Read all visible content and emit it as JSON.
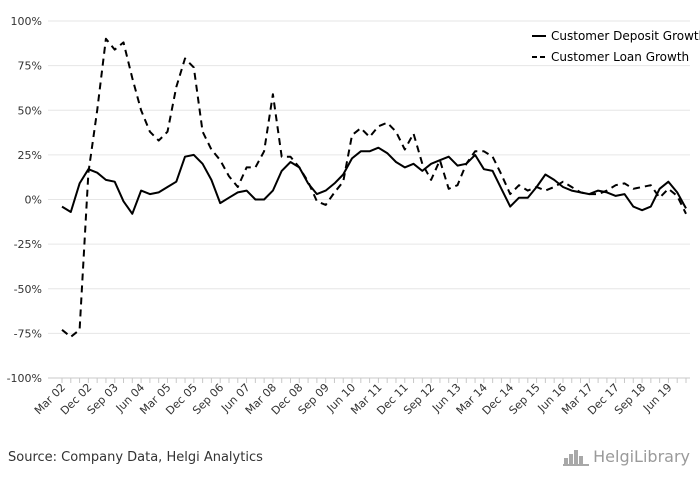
{
  "source_text": "Source: Company Data, Helgi Analytics",
  "brand": {
    "name": "HelgiLibrary",
    "logo_icon": "helgi-library-logo-icon"
  },
  "colors": {
    "grid": "#e6e6e6",
    "line": "#000000",
    "axis": "#c8c8c8"
  },
  "chart_data": {
    "type": "line",
    "title": "",
    "xlabel": "",
    "ylabel": "",
    "ylim": [
      -1.0,
      1.0
    ],
    "yticks": [
      "100%",
      "75%",
      "50%",
      "25%",
      "0%",
      "-25%",
      "-50%",
      "-75%",
      "-100%"
    ],
    "ytick_values": [
      1.0,
      0.75,
      0.5,
      0.25,
      0,
      -0.25,
      -0.5,
      -0.75,
      -1.0
    ],
    "x_tick_labels": [
      "Mar 02",
      "Dec 02",
      "Sep 03",
      "Jun 04",
      "Mar 05",
      "Dec 05",
      "Sep 06",
      "Jun 07",
      "Mar 08",
      "Dec 08",
      "Sep 09",
      "Jun 10",
      "Mar 11",
      "Dec 11",
      "Sep 12",
      "Jun 13",
      "Mar 14",
      "Dec 14",
      "Sep 15",
      "Jun 16",
      "Mar 17",
      "Dec 17",
      "Sep 18",
      "Jun 19"
    ],
    "grid": true,
    "legend_position": "top-right",
    "categories": [
      "Mar 02",
      "Jun 02",
      "Sep 02",
      "Dec 02",
      "Mar 03",
      "Jun 03",
      "Sep 03",
      "Dec 03",
      "Mar 04",
      "Jun 04",
      "Sep 04",
      "Dec 04",
      "Mar 05",
      "Jun 05",
      "Sep 05",
      "Dec 05",
      "Mar 06",
      "Jun 06",
      "Sep 06",
      "Dec 06",
      "Mar 07",
      "Jun 07",
      "Sep 07",
      "Dec 07",
      "Mar 08",
      "Jun 08",
      "Sep 08",
      "Dec 08",
      "Mar 09",
      "Jun 09",
      "Sep 09",
      "Dec 09",
      "Mar 10",
      "Jun 10",
      "Sep 10",
      "Dec 10",
      "Mar 11",
      "Jun 11",
      "Sep 11",
      "Dec 11",
      "Mar 12",
      "Jun 12",
      "Sep 12",
      "Dec 12",
      "Mar 13",
      "Jun 13",
      "Sep 13",
      "Dec 13",
      "Mar 14",
      "Jun 14",
      "Sep 14",
      "Dec 14",
      "Mar 15",
      "Jun 15",
      "Sep 15",
      "Dec 15",
      "Mar 16",
      "Jun 16",
      "Sep 16",
      "Dec 16",
      "Mar 17",
      "Jun 17",
      "Sep 17",
      "Dec 17",
      "Mar 18",
      "Jun 18",
      "Sep 18",
      "Dec 18",
      "Mar 19",
      "Jun 19",
      "Sep 19",
      "Dec 19"
    ],
    "series": [
      {
        "name": "Customer Deposit Growth",
        "dash": "solid",
        "values": [
          -0.04,
          -0.07,
          0.09,
          0.17,
          0.15,
          0.11,
          0.1,
          -0.01,
          -0.08,
          0.05,
          0.03,
          0.04,
          0.07,
          0.1,
          0.24,
          0.25,
          0.2,
          0.11,
          -0.02,
          0.01,
          0.04,
          0.05,
          0.0,
          0.0,
          0.05,
          0.16,
          0.21,
          0.18,
          0.09,
          0.03,
          0.05,
          0.09,
          0.14,
          0.23,
          0.27,
          0.27,
          0.29,
          0.26,
          0.21,
          0.18,
          0.2,
          0.16,
          0.2,
          0.22,
          0.24,
          0.19,
          0.2,
          0.25,
          0.17,
          0.16,
          0.06,
          -0.04,
          0.01,
          0.01,
          0.07,
          0.14,
          0.11,
          0.07,
          0.05,
          0.04,
          0.03,
          0.05,
          0.04,
          0.02,
          0.03,
          -0.04,
          -0.06,
          -0.04,
          0.06,
          0.1,
          0.04,
          -0.05
        ]
      },
      {
        "name": "Customer Loan Growth",
        "dash": "dashed",
        "values": [
          -0.73,
          -0.77,
          -0.73,
          0.15,
          0.5,
          0.9,
          0.84,
          0.88,
          0.68,
          0.5,
          0.38,
          0.33,
          0.38,
          0.63,
          0.79,
          0.74,
          0.38,
          0.28,
          0.22,
          0.13,
          0.07,
          0.18,
          0.18,
          0.27,
          0.59,
          0.24,
          0.24,
          0.18,
          0.1,
          -0.01,
          -0.03,
          0.04,
          0.1,
          0.36,
          0.4,
          0.35,
          0.41,
          0.43,
          0.38,
          0.28,
          0.37,
          0.2,
          0.11,
          0.22,
          0.06,
          0.08,
          0.2,
          0.27,
          0.27,
          0.24,
          0.14,
          0.03,
          0.08,
          0.05,
          0.07,
          0.05,
          0.07,
          0.1,
          0.07,
          0.04,
          0.03,
          0.03,
          0.05,
          0.08,
          0.09,
          0.06,
          0.07,
          0.08,
          0.01,
          0.06,
          0.02,
          -0.08
        ]
      }
    ]
  }
}
